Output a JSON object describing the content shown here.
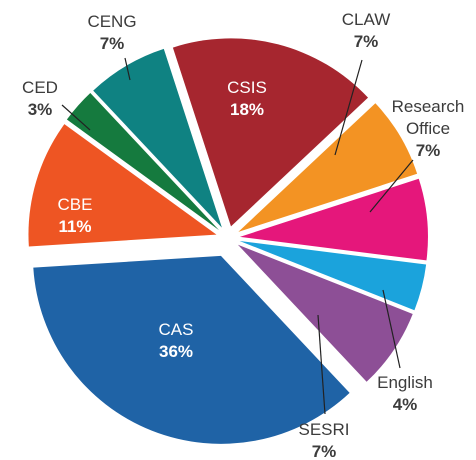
{
  "chart_data": {
    "type": "pie",
    "categories": [
      "CSIS",
      "CLAW",
      "Research Office",
      "English",
      "SESRI",
      "CAS",
      "CBE",
      "CED",
      "CENG"
    ],
    "values": [
      18,
      7,
      7,
      4,
      7,
      36,
      11,
      3,
      7
    ],
    "value_labels": [
      "18%",
      "7%",
      "7%",
      "4%",
      "7%",
      "36%",
      "11%",
      "3%",
      "7%"
    ],
    "colors": [
      "#a6262f",
      "#f39323",
      "#e5177b",
      "#1ba3dc",
      "#8d4f96",
      "#1f63a6",
      "#ee5523",
      "#157a3e",
      "#0f8282"
    ]
  }
}
